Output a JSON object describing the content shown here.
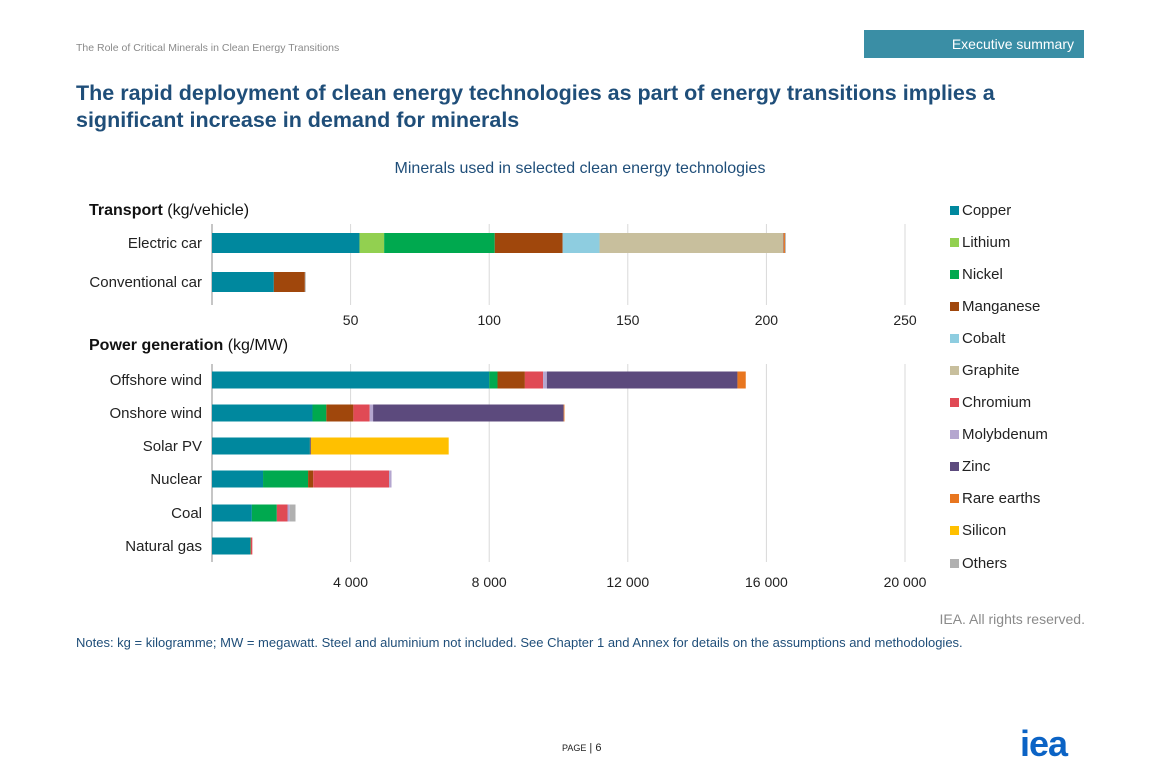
{
  "header": {
    "doc_title": "The Role of Critical Minerals in Clean Energy Transitions",
    "section_tab": "Executive summary",
    "headline": "The rapid deployment of clean energy technologies as part of energy transitions implies a significant increase in demand for minerals"
  },
  "chart_data": {
    "type": "bar",
    "orientation": "horizontal",
    "stacked": true,
    "title": "Minerals used in selected clean energy technologies",
    "legend_position": "right",
    "grid": true,
    "minerals": [
      "Copper",
      "Lithium",
      "Nickel",
      "Manganese",
      "Cobalt",
      "Graphite",
      "Chromium",
      "Molybdenum",
      "Zinc",
      "Rare earths",
      "Silicon",
      "Others"
    ],
    "colors": {
      "Copper": "#00889e",
      "Lithium": "#92d050",
      "Nickel": "#00a94f",
      "Manganese": "#a0470c",
      "Cobalt": "#8ecde0",
      "Graphite": "#c8bf9d",
      "Chromium": "#e04a55",
      "Molybdenum": "#b4a6cf",
      "Zinc": "#5c4a7d",
      "Rare earths": "#e8761f",
      "Silicon": "#ffc000",
      "Others": "#b0b0b0"
    },
    "panels": [
      {
        "title_bold": "Transport",
        "title_unit": " (kg/vehicle)",
        "xlim": [
          0,
          250
        ],
        "ticks": [
          50,
          100,
          150,
          200,
          250
        ],
        "tick_labels": [
          "50",
          "100",
          "150",
          "200",
          "250"
        ],
        "categories": [
          "Electric car",
          "Conventional car"
        ],
        "series": [
          {
            "name": "Copper",
            "values": [
              53.2,
              22.3
            ]
          },
          {
            "name": "Lithium",
            "values": [
              8.9,
              0
            ]
          },
          {
            "name": "Nickel",
            "values": [
              39.9,
              0
            ]
          },
          {
            "name": "Manganese",
            "values": [
              24.5,
              11.2
            ]
          },
          {
            "name": "Cobalt",
            "values": [
              13.3,
              0
            ]
          },
          {
            "name": "Graphite",
            "values": [
              66.3,
              0
            ]
          },
          {
            "name": "Chromium",
            "values": [
              0,
              0
            ]
          },
          {
            "name": "Molybdenum",
            "values": [
              0,
              0
            ]
          },
          {
            "name": "Zinc",
            "values": [
              0.1,
              0
            ]
          },
          {
            "name": "Rare earths",
            "values": [
              0.5,
              0
            ]
          },
          {
            "name": "Silicon",
            "values": [
              0,
              0
            ]
          },
          {
            "name": "Others",
            "values": [
              0.3,
              0.3
            ]
          }
        ]
      },
      {
        "title_bold": "Power generation",
        "title_unit": " (kg/MW)",
        "xlim": [
          0,
          20000
        ],
        "ticks": [
          4000,
          8000,
          12000,
          16000,
          20000
        ],
        "tick_labels": [
          "4 000",
          "8 000",
          "12 000",
          "16 000",
          "20 000"
        ],
        "categories": [
          "Offshore wind",
          "Onshore wind",
          "Solar PV",
          "Nuclear",
          "Coal",
          "Natural gas"
        ],
        "series": [
          {
            "name": "Copper",
            "values": [
              8000,
              2900,
              2822,
              1473,
              1150,
              1100
            ]
          },
          {
            "name": "Lithium",
            "values": [
              0,
              0,
              0,
              0,
              0,
              0
            ]
          },
          {
            "name": "Nickel",
            "values": [
              240,
              400,
              1,
              1300,
              721,
              16
            ]
          },
          {
            "name": "Manganese",
            "values": [
              790,
              780,
              0,
              148,
              0,
              0
            ]
          },
          {
            "name": "Cobalt",
            "values": [
              0,
              0,
              0,
              0,
              0,
              0
            ]
          },
          {
            "name": "Graphite",
            "values": [
              0,
              0,
              0,
              0,
              0,
              0
            ]
          },
          {
            "name": "Chromium",
            "values": [
              525,
              470,
              0,
              2190,
              308,
              48
            ]
          },
          {
            "name": "Molybdenum",
            "values": [
              109,
              99,
              0,
              70,
              66,
              0
            ]
          },
          {
            "name": "Zinc",
            "values": [
              5500,
              5500,
              30,
              0,
              0,
              0
            ]
          },
          {
            "name": "Rare earths",
            "values": [
              240,
              14,
              0,
              0,
              0,
              0
            ]
          },
          {
            "name": "Silicon",
            "values": [
              0,
              0,
              3978,
              0,
              0,
              0
            ]
          },
          {
            "name": "Others",
            "values": [
              0,
              0,
              0,
              0,
              165,
              0
            ]
          }
        ]
      }
    ]
  },
  "footer": {
    "rights": "IEA. All rights reserved.",
    "notes": "Notes: kg = kilogramme; MW = megawatt. Steel and aluminium not included. See Chapter 1 and Annex for details on the assumptions and methodologies.",
    "page_label": "Page",
    "page_number": "6",
    "logo": "iea"
  }
}
